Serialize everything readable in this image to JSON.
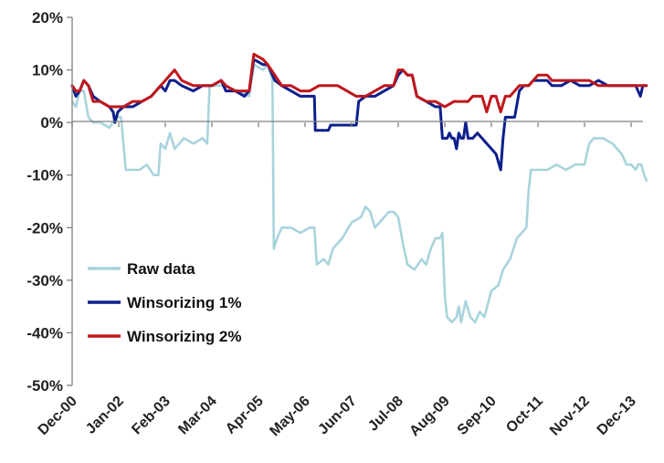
{
  "chart_data": {
    "type": "line",
    "x": [
      "Dec-00",
      "Jan-02",
      "Feb-03",
      "Mar-04",
      "Apr-05",
      "May-06",
      "Jun-07",
      "Jul-08",
      "Aug-09",
      "Sep-10",
      "Oct-11",
      "Nov-12",
      "Dec-13"
    ],
    "ylim": [
      -50,
      20
    ],
    "yticks": [
      20,
      10,
      0,
      -10,
      -20,
      -30,
      -40,
      -50
    ],
    "ytick_labels": [
      "20%",
      "10%",
      "0%",
      "-10%",
      "-20%",
      "-30%",
      "-40%",
      "-50%"
    ],
    "grid": false,
    "legend_position": "lower-left",
    "series": [
      {
        "name": "Raw data",
        "color": "#a8d4dc",
        "points": [
          [
            0.0,
            4
          ],
          [
            0.08,
            3
          ],
          [
            0.16,
            6
          ],
          [
            0.25,
            6
          ],
          [
            0.35,
            1
          ],
          [
            0.45,
            0
          ],
          [
            0.6,
            0
          ],
          [
            0.8,
            -1
          ],
          [
            0.95,
            1
          ],
          [
            1.05,
            1
          ],
          [
            1.1,
            -4
          ],
          [
            1.15,
            -9
          ],
          [
            1.3,
            -9
          ],
          [
            1.45,
            -9
          ],
          [
            1.6,
            -8
          ],
          [
            1.75,
            -10
          ],
          [
            1.85,
            -10
          ],
          [
            1.9,
            -4
          ],
          [
            2.0,
            -5
          ],
          [
            2.1,
            -2
          ],
          [
            2.2,
            -5
          ],
          [
            2.3,
            -4
          ],
          [
            2.4,
            -3
          ],
          [
            2.6,
            -4
          ],
          [
            2.8,
            -3
          ],
          [
            2.9,
            -4
          ],
          [
            2.95,
            7
          ],
          [
            3.2,
            7
          ],
          [
            3.6,
            6
          ],
          [
            3.8,
            5
          ],
          [
            3.9,
            11
          ],
          [
            4.1,
            10
          ],
          [
            4.2,
            11
          ],
          [
            4.3,
            8
          ],
          [
            4.33,
            -24
          ],
          [
            4.4,
            -22
          ],
          [
            4.5,
            -20
          ],
          [
            4.7,
            -20
          ],
          [
            4.9,
            -21
          ],
          [
            5.1,
            -20
          ],
          [
            5.2,
            -20
          ],
          [
            5.25,
            -27
          ],
          [
            5.4,
            -26
          ],
          [
            5.5,
            -27
          ],
          [
            5.6,
            -24
          ],
          [
            5.8,
            -22
          ],
          [
            6.0,
            -19
          ],
          [
            6.2,
            -18
          ],
          [
            6.3,
            -16
          ],
          [
            6.4,
            -17
          ],
          [
            6.5,
            -20
          ],
          [
            6.7,
            -18
          ],
          [
            6.8,
            -17
          ],
          [
            6.9,
            -17
          ],
          [
            7.0,
            -18
          ],
          [
            7.1,
            -23
          ],
          [
            7.2,
            -27
          ],
          [
            7.35,
            -28
          ],
          [
            7.5,
            -26
          ],
          [
            7.6,
            -27
          ],
          [
            7.7,
            -24
          ],
          [
            7.8,
            -22
          ],
          [
            7.9,
            -22
          ],
          [
            7.95,
            -21
          ],
          [
            8.0,
            -33
          ],
          [
            8.05,
            -37
          ],
          [
            8.15,
            -38
          ],
          [
            8.25,
            -37
          ],
          [
            8.3,
            -35
          ],
          [
            8.35,
            -38
          ],
          [
            8.45,
            -34
          ],
          [
            8.55,
            -37
          ],
          [
            8.65,
            -38
          ],
          [
            8.75,
            -36
          ],
          [
            8.85,
            -37
          ],
          [
            9.0,
            -32
          ],
          [
            9.15,
            -31
          ],
          [
            9.25,
            -28
          ],
          [
            9.4,
            -26
          ],
          [
            9.55,
            -22
          ],
          [
            9.65,
            -21
          ],
          [
            9.75,
            -20
          ],
          [
            9.8,
            -13
          ],
          [
            9.85,
            -9
          ],
          [
            9.95,
            -9
          ],
          [
            10.2,
            -9
          ],
          [
            10.4,
            -8
          ],
          [
            10.6,
            -9
          ],
          [
            10.8,
            -8
          ],
          [
            11.0,
            -8
          ],
          [
            11.1,
            -4
          ],
          [
            11.2,
            -3
          ],
          [
            11.4,
            -3
          ],
          [
            11.6,
            -4
          ],
          [
            11.8,
            -6
          ],
          [
            11.9,
            -8
          ],
          [
            12.0,
            -8
          ],
          [
            12.1,
            -9
          ],
          [
            12.15,
            -8
          ],
          [
            12.22,
            -8
          ],
          [
            12.28,
            -10
          ],
          [
            12.33,
            -11
          ]
        ]
      },
      {
        "name": "Winsorizing 1%",
        "color": "#0d1f8c",
        "points": [
          [
            0.0,
            7
          ],
          [
            0.08,
            5
          ],
          [
            0.16,
            6
          ],
          [
            0.25,
            8
          ],
          [
            0.35,
            7
          ],
          [
            0.45,
            5
          ],
          [
            0.6,
            4
          ],
          [
            0.8,
            3
          ],
          [
            0.88,
            2
          ],
          [
            0.92,
            0
          ],
          [
            0.98,
            2
          ],
          [
            1.1,
            3
          ],
          [
            1.3,
            3
          ],
          [
            1.5,
            4
          ],
          [
            1.7,
            5
          ],
          [
            1.9,
            7
          ],
          [
            2.0,
            6
          ],
          [
            2.1,
            8
          ],
          [
            2.2,
            8
          ],
          [
            2.35,
            7
          ],
          [
            2.6,
            6
          ],
          [
            2.8,
            7
          ],
          [
            3.0,
            7
          ],
          [
            3.2,
            8
          ],
          [
            3.3,
            6
          ],
          [
            3.5,
            6
          ],
          [
            3.7,
            5
          ],
          [
            3.8,
            6
          ],
          [
            3.9,
            12
          ],
          [
            4.1,
            11
          ],
          [
            4.2,
            11
          ],
          [
            4.35,
            8
          ],
          [
            4.5,
            7
          ],
          [
            4.7,
            6
          ],
          [
            4.9,
            5
          ],
          [
            5.1,
            5
          ],
          [
            5.2,
            5
          ],
          [
            5.22,
            -1.5
          ],
          [
            5.4,
            -1.5
          ],
          [
            5.5,
            -1.5
          ],
          [
            5.55,
            -0.5
          ],
          [
            5.8,
            -0.5
          ],
          [
            6.0,
            -0.5
          ],
          [
            6.1,
            -0.5
          ],
          [
            6.15,
            4
          ],
          [
            6.3,
            5
          ],
          [
            6.5,
            5
          ],
          [
            6.7,
            6
          ],
          [
            6.9,
            7
          ],
          [
            7.0,
            9
          ],
          [
            7.1,
            10
          ],
          [
            7.2,
            9
          ],
          [
            7.3,
            9
          ],
          [
            7.4,
            5
          ],
          [
            7.6,
            4
          ],
          [
            7.8,
            3
          ],
          [
            7.9,
            3
          ],
          [
            7.95,
            -3
          ],
          [
            8.05,
            -3
          ],
          [
            8.1,
            -2
          ],
          [
            8.15,
            -3
          ],
          [
            8.2,
            -3
          ],
          [
            8.25,
            -5
          ],
          [
            8.3,
            -2
          ],
          [
            8.35,
            -3
          ],
          [
            8.4,
            -3
          ],
          [
            8.45,
            0
          ],
          [
            8.5,
            -3
          ],
          [
            8.6,
            -3
          ],
          [
            8.7,
            -2
          ],
          [
            8.8,
            -3
          ],
          [
            8.9,
            -4
          ],
          [
            9.0,
            -5
          ],
          [
            9.1,
            -6
          ],
          [
            9.2,
            -9
          ],
          [
            9.25,
            -3
          ],
          [
            9.3,
            1
          ],
          [
            9.5,
            1
          ],
          [
            9.6,
            6
          ],
          [
            9.7,
            7
          ],
          [
            9.8,
            7
          ],
          [
            9.9,
            8
          ],
          [
            10.0,
            8
          ],
          [
            10.2,
            8
          ],
          [
            10.3,
            7
          ],
          [
            10.5,
            7
          ],
          [
            10.7,
            8
          ],
          [
            10.9,
            7
          ],
          [
            11.1,
            7
          ],
          [
            11.3,
            8
          ],
          [
            11.5,
            7
          ],
          [
            11.7,
            7
          ],
          [
            11.9,
            7
          ],
          [
            12.0,
            7
          ],
          [
            12.1,
            7
          ],
          [
            12.15,
            6
          ],
          [
            12.2,
            5
          ],
          [
            12.25,
            7
          ],
          [
            12.33,
            7
          ]
        ]
      },
      {
        "name": "Winsorizing 2%",
        "color": "#c0171c",
        "points": [
          [
            0.0,
            7
          ],
          [
            0.08,
            6
          ],
          [
            0.16,
            6
          ],
          [
            0.25,
            8
          ],
          [
            0.35,
            7
          ],
          [
            0.45,
            4
          ],
          [
            0.6,
            4
          ],
          [
            0.8,
            3
          ],
          [
            1.0,
            3
          ],
          [
            1.1,
            3
          ],
          [
            1.3,
            4
          ],
          [
            1.5,
            4
          ],
          [
            1.7,
            5
          ],
          [
            1.9,
            7
          ],
          [
            2.0,
            8
          ],
          [
            2.1,
            9
          ],
          [
            2.2,
            10
          ],
          [
            2.35,
            8
          ],
          [
            2.6,
            7
          ],
          [
            2.8,
            7
          ],
          [
            3.0,
            7
          ],
          [
            3.2,
            8
          ],
          [
            3.3,
            7
          ],
          [
            3.5,
            6
          ],
          [
            3.7,
            6
          ],
          [
            3.8,
            6
          ],
          [
            3.9,
            13
          ],
          [
            4.1,
            12
          ],
          [
            4.2,
            11
          ],
          [
            4.35,
            9
          ],
          [
            4.5,
            7
          ],
          [
            4.7,
            7
          ],
          [
            4.9,
            6
          ],
          [
            5.1,
            6
          ],
          [
            5.3,
            7
          ],
          [
            5.5,
            7
          ],
          [
            5.7,
            7
          ],
          [
            5.9,
            6
          ],
          [
            6.1,
            5
          ],
          [
            6.3,
            5
          ],
          [
            6.5,
            6
          ],
          [
            6.7,
            7
          ],
          [
            6.9,
            7
          ],
          [
            7.0,
            10
          ],
          [
            7.1,
            10
          ],
          [
            7.2,
            9
          ],
          [
            7.3,
            9
          ],
          [
            7.4,
            5
          ],
          [
            7.6,
            4
          ],
          [
            7.8,
            4
          ],
          [
            8.0,
            3
          ],
          [
            8.2,
            4
          ],
          [
            8.4,
            4
          ],
          [
            8.5,
            4
          ],
          [
            8.6,
            5
          ],
          [
            8.8,
            5
          ],
          [
            8.9,
            2
          ],
          [
            9.0,
            5
          ],
          [
            9.1,
            5
          ],
          [
            9.2,
            2
          ],
          [
            9.3,
            5
          ],
          [
            9.4,
            5
          ],
          [
            9.5,
            6
          ],
          [
            9.6,
            7
          ],
          [
            9.7,
            7
          ],
          [
            9.8,
            7
          ],
          [
            9.9,
            8
          ],
          [
            10.0,
            9
          ],
          [
            10.2,
            9
          ],
          [
            10.3,
            8
          ],
          [
            10.5,
            8
          ],
          [
            10.7,
            8
          ],
          [
            10.9,
            8
          ],
          [
            11.1,
            8
          ],
          [
            11.3,
            7
          ],
          [
            11.5,
            7
          ],
          [
            11.7,
            7
          ],
          [
            11.9,
            7
          ],
          [
            12.0,
            7
          ],
          [
            12.1,
            7
          ],
          [
            12.2,
            7
          ],
          [
            12.33,
            7
          ]
        ]
      }
    ]
  }
}
